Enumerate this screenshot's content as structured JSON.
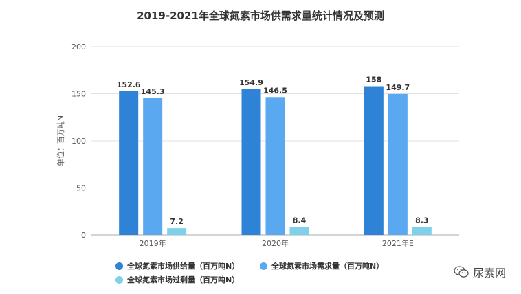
{
  "chart_data": {
    "type": "bar",
    "title": "2019-2021年全球氮素市场供需求量统计情况及预测",
    "ylabel": "单位：百万吨N",
    "xlabel": "",
    "ylim": [
      0,
      200
    ],
    "yticks": [
      0,
      50,
      100,
      150,
      200
    ],
    "grid": true,
    "legend": "bottom",
    "categories": [
      "2019年",
      "2020年",
      "2021年E"
    ],
    "series": [
      {
        "name": "全球氮素市场供给量（百万吨N）",
        "color": "#2e83d6",
        "values": [
          152.6,
          154.9,
          158
        ]
      },
      {
        "name": "全球氮素市场需求量（百万吨N）",
        "color": "#5aa8f0",
        "values": [
          145.3,
          146.5,
          149.7
        ]
      },
      {
        "name": "全球氮素市场过剩量（百万吨N）",
        "color": "#7fd0ea",
        "values": [
          7.2,
          8.4,
          8.3
        ]
      }
    ]
  },
  "watermark": {
    "text": "尿素网",
    "icon": "wechat-icon"
  }
}
